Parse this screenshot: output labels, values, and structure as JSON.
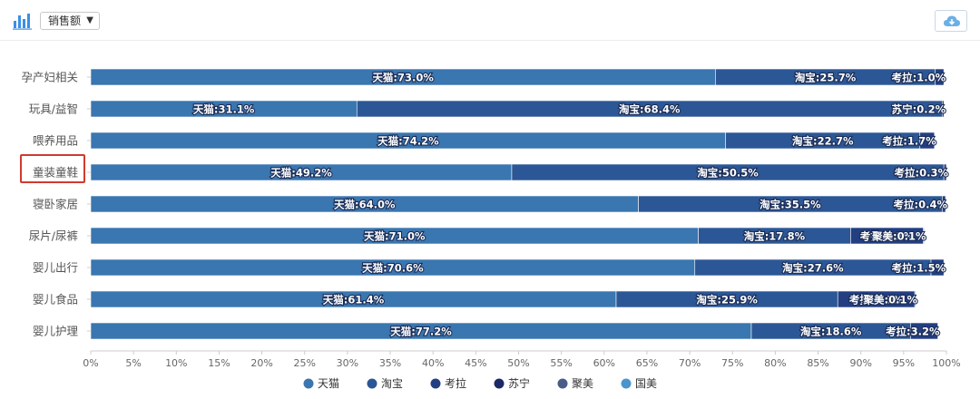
{
  "toolbar": {
    "chart_icon": "bar-chart-icon",
    "metric_selected": "销售额",
    "download_icon": "cloud-download-icon"
  },
  "colors": {
    "天猫": "#3a76b0",
    "淘宝": "#2c5796",
    "考拉": "#233f82",
    "苏宁": "#1b2a66",
    "聚美": "#4a5b8a",
    "国美": "#4a95cc",
    "highlight": "#d03a2e"
  },
  "chart_data": {
    "type": "bar",
    "orientation": "horizontal",
    "stacked": true,
    "percent": true,
    "title": "",
    "xlabel": "",
    "ylabel": "",
    "xlim": [
      0,
      100
    ],
    "x_ticks": [
      "0%",
      "5%",
      "10%",
      "15%",
      "20%",
      "25%",
      "30%",
      "35%",
      "40%",
      "45%",
      "50%",
      "55%",
      "60%",
      "65%",
      "70%",
      "75%",
      "80%",
      "85%",
      "90%",
      "95%",
      "100%"
    ],
    "categories": [
      "孕产妇相关",
      "玩具/益智",
      "喂养用品",
      "童装童鞋",
      "寝卧家居",
      "尿片/尿裤",
      "婴儿出行",
      "婴儿食品",
      "婴儿护理"
    ],
    "highlighted_category": "童装童鞋",
    "legend_position": "bottom",
    "legend": [
      "天猫",
      "淘宝",
      "考拉",
      "苏宁",
      "聚美",
      "国美"
    ],
    "series": [
      {
        "name": "天猫",
        "values": [
          73.0,
          31.1,
          74.2,
          49.2,
          64.0,
          71.0,
          70.6,
          61.4,
          77.2
        ]
      },
      {
        "name": "淘宝",
        "values": [
          25.7,
          68.4,
          22.7,
          50.5,
          35.5,
          17.8,
          27.6,
          25.9,
          18.6
        ]
      },
      {
        "name": "考拉",
        "values": [
          1.0,
          0.0,
          1.7,
          0.3,
          0.4,
          8.5,
          1.5,
          9.0,
          3.2
        ]
      },
      {
        "name": "苏宁",
        "values": [
          0.0,
          0.2,
          0.0,
          0.0,
          0.0,
          0.0,
          0.0,
          0.0,
          0.0
        ]
      },
      {
        "name": "聚美",
        "values": [
          0.0,
          0.0,
          0.0,
          0.0,
          0.0,
          0.1,
          0.0,
          0.1,
          0.0
        ]
      },
      {
        "name": "国美",
        "values": [
          0.0,
          0.0,
          0.0,
          0.0,
          0.0,
          0.0,
          0.0,
          0.0,
          0.0
        ]
      }
    ],
    "data_labels": [
      [
        "天猫:73.0%",
        "淘宝:25.7%",
        "考拉:1.0%",
        "",
        "",
        ""
      ],
      [
        "天猫:31.1%",
        "淘宝:68.4%",
        "",
        "苏宁:0.2%",
        "",
        ""
      ],
      [
        "天猫:74.2%",
        "淘宝:22.7%",
        "考拉:1.7%",
        "",
        "",
        ""
      ],
      [
        "天猫:49.2%",
        "淘宝:50.5%",
        "考拉:0.3%",
        "",
        "",
        ""
      ],
      [
        "天猫:64.0%",
        "淘宝:35.5%",
        "考拉:0.4%",
        "",
        "",
        ""
      ],
      [
        "天猫:71.0%",
        "淘宝:17.8%",
        "考拉:8.5%",
        "",
        "聚美:0.1%",
        ""
      ],
      [
        "天猫:70.6%",
        "淘宝:27.6%",
        "考拉:1.5%",
        "",
        "",
        ""
      ],
      [
        "天猫:61.4%",
        "淘宝:25.9%",
        "考拉:9.0%",
        "",
        "聚美:0.1%",
        ""
      ],
      [
        "天猫:77.2%",
        "淘宝:18.6%",
        "考拉:3.2%",
        "",
        "",
        ""
      ]
    ]
  }
}
